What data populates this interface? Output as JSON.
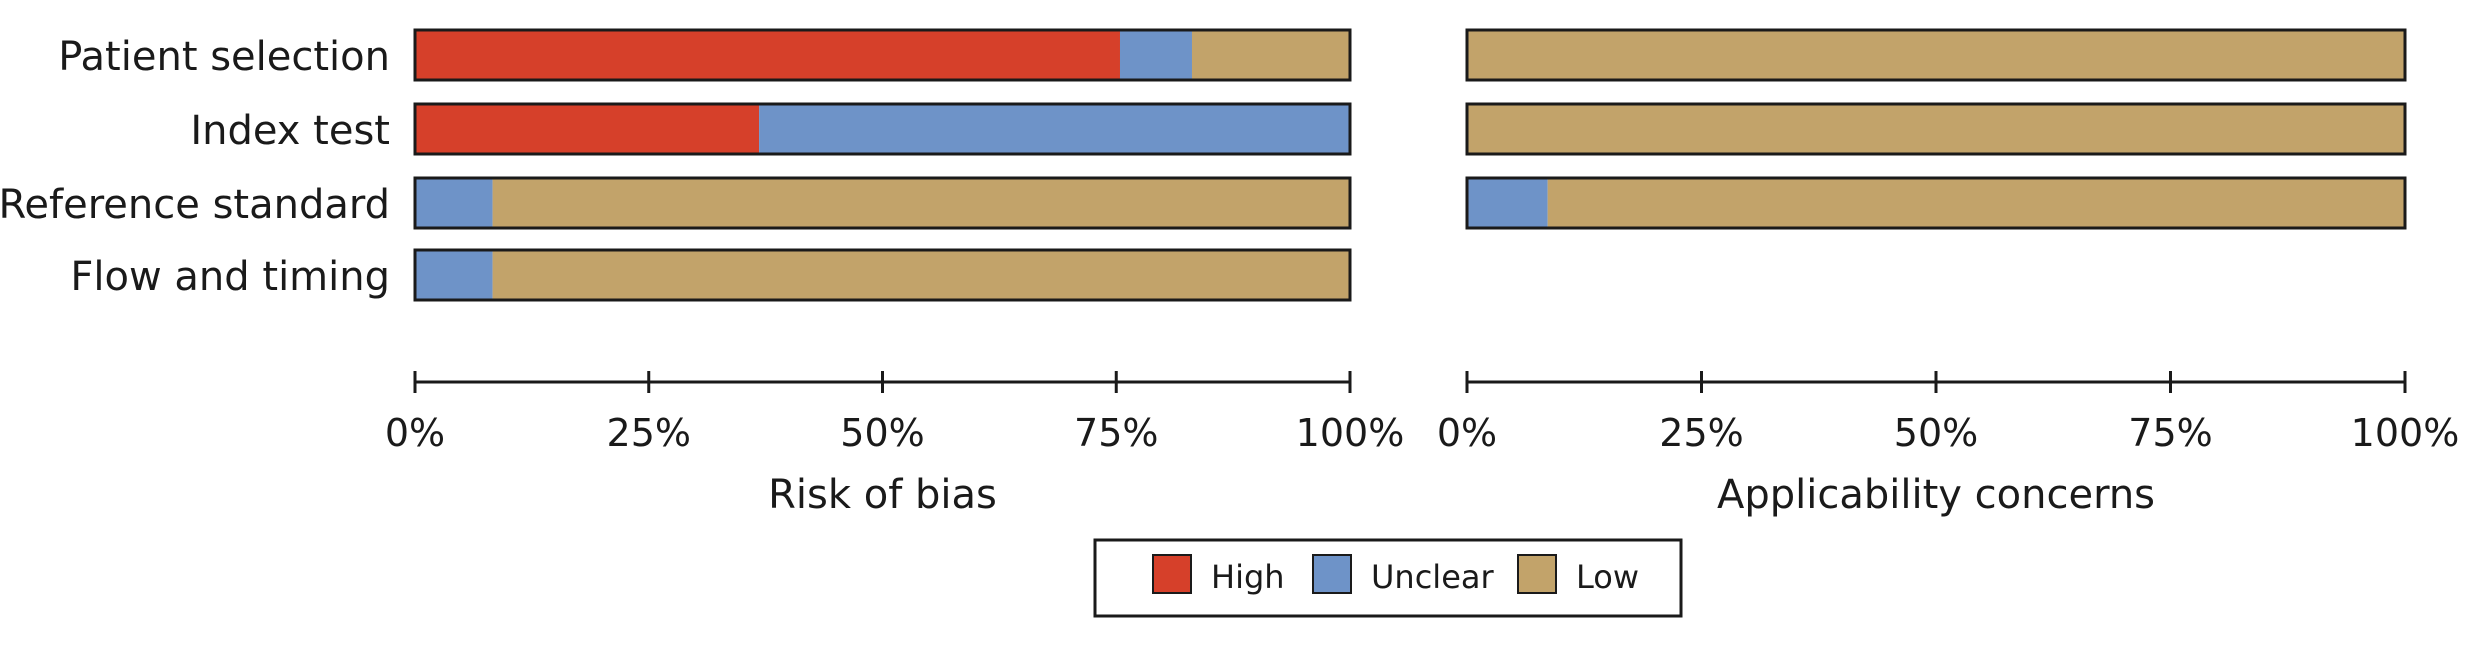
{
  "colors": {
    "High": "#d6402a",
    "Unclear": "#6e93c8",
    "Low": "#c2a36a",
    "outline": "#1a1a1a"
  },
  "chart_data": [
    {
      "type": "bar",
      "orientation": "horizontal",
      "stacked": true,
      "xlabel": "Risk of bias",
      "categories": [
        "Patient selection",
        "Index test",
        "Reference standard",
        "Flow and timing"
      ],
      "series": [
        {
          "name": "High",
          "values": [
            75.4,
            36.8,
            0,
            0
          ]
        },
        {
          "name": "Unclear",
          "values": [
            7.7,
            63.2,
            8.3,
            8.3
          ]
        },
        {
          "name": "Low",
          "values": [
            16.9,
            0,
            91.7,
            91.7
          ]
        }
      ],
      "xlim": [
        0,
        100
      ],
      "ticks": [
        "0%",
        "25%",
        "50%",
        "75%",
        "100%"
      ]
    },
    {
      "type": "bar",
      "orientation": "horizontal",
      "stacked": true,
      "xlabel": "Applicability concerns",
      "categories": [
        "Patient selection",
        "Index test",
        "Reference standard"
      ],
      "series": [
        {
          "name": "High",
          "values": [
            0,
            0,
            0
          ]
        },
        {
          "name": "Unclear",
          "values": [
            0,
            0,
            8.6
          ]
        },
        {
          "name": "Low",
          "values": [
            100,
            100,
            91.4
          ]
        }
      ],
      "xlim": [
        0,
        100
      ],
      "ticks": [
        "0%",
        "25%",
        "50%",
        "75%",
        "100%"
      ]
    }
  ],
  "legend": {
    "items": [
      {
        "label": "High",
        "key": "High"
      },
      {
        "label": "Unclear",
        "key": "Unclear"
      },
      {
        "label": "Low",
        "key": "Low"
      }
    ],
    "placement": "bottom-center"
  }
}
